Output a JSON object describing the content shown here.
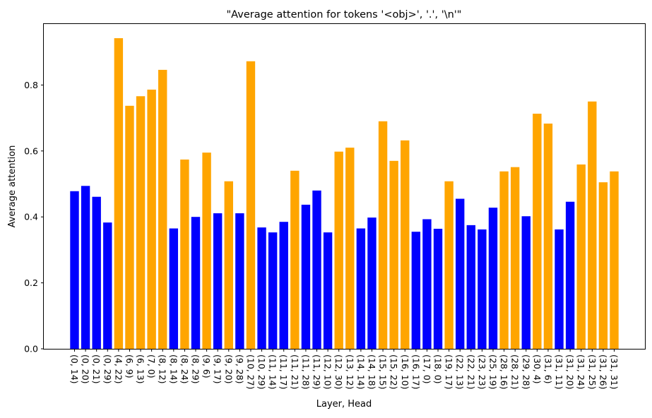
{
  "chart_data": {
    "type": "bar",
    "title": "\"Average attention for tokens '<obj>', '.', '\\n'\"",
    "xlabel": "Layer, Head",
    "ylabel": "Average attention",
    "ylim": [
      0,
      0.985
    ],
    "yticks": [
      "0.0",
      "0.2",
      "0.4",
      "0.6",
      "0.8"
    ],
    "grid": false,
    "legend": "none",
    "colors": {
      "blue": "#0000ff",
      "orange": "#ffa500"
    },
    "categories": [
      "(0, 14)",
      "(0, 20)",
      "(0, 21)",
      "(0, 29)",
      "(4, 22)",
      "(6, 9)",
      "(6, 13)",
      "(7, 0)",
      "(8, 12)",
      "(8, 14)",
      "(8, 24)",
      "(8, 29)",
      "(9, 6)",
      "(9, 17)",
      "(9, 20)",
      "(9, 28)",
      "(10, 27)",
      "(10, 29)",
      "(11, 14)",
      "(11, 17)",
      "(11, 21)",
      "(11, 28)",
      "(11, 29)",
      "(12, 10)",
      "(12, 30)",
      "(13, 12)",
      "(14, 14)",
      "(14, 18)",
      "(15, 15)",
      "(15, 22)",
      "(16, 10)",
      "(16, 17)",
      "(17, 0)",
      "(18, 0)",
      "(19, 17)",
      "(22, 13)",
      "(22, 21)",
      "(23, 23)",
      "(25, 19)",
      "(28, 16)",
      "(28, 21)",
      "(29, 28)",
      "(30, 4)",
      "(31, 6)",
      "(31, 11)",
      "(31, 20)",
      "(31, 24)",
      "(31, 25)",
      "(31, 26)",
      "(31, 31)"
    ],
    "values": [
      0.478,
      0.494,
      0.461,
      0.383,
      0.942,
      0.737,
      0.766,
      0.786,
      0.846,
      0.365,
      0.574,
      0.4,
      0.595,
      0.411,
      0.508,
      0.411,
      0.872,
      0.368,
      0.353,
      0.385,
      0.54,
      0.437,
      0.48,
      0.353,
      0.598,
      0.61,
      0.365,
      0.398,
      0.69,
      0.57,
      0.632,
      0.355,
      0.393,
      0.364,
      0.508,
      0.455,
      0.375,
      0.362,
      0.428,
      0.538,
      0.551,
      0.402,
      0.713,
      0.683,
      0.362,
      0.446,
      0.559,
      0.75,
      0.505,
      0.538
    ],
    "bar_colors": [
      "blue",
      "blue",
      "blue",
      "blue",
      "orange",
      "orange",
      "orange",
      "orange",
      "orange",
      "blue",
      "orange",
      "blue",
      "orange",
      "blue",
      "orange",
      "blue",
      "orange",
      "blue",
      "blue",
      "blue",
      "orange",
      "blue",
      "blue",
      "blue",
      "orange",
      "orange",
      "blue",
      "blue",
      "orange",
      "orange",
      "orange",
      "blue",
      "blue",
      "blue",
      "orange",
      "blue",
      "blue",
      "blue",
      "blue",
      "orange",
      "orange",
      "blue",
      "orange",
      "orange",
      "blue",
      "blue",
      "orange",
      "orange",
      "orange",
      "orange"
    ]
  }
}
